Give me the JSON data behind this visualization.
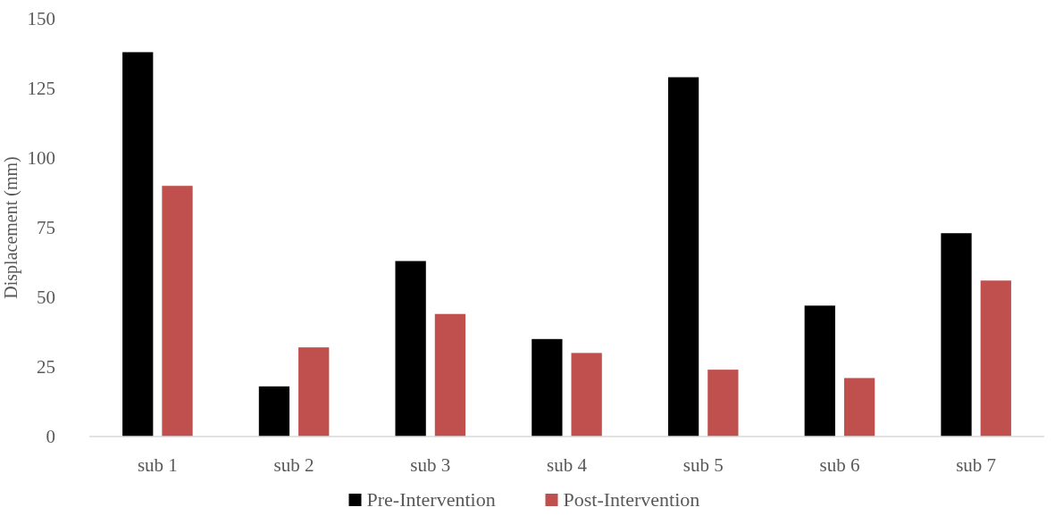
{
  "chart_data": {
    "type": "bar",
    "ylabel": "Displacement (mm)",
    "categories": [
      "sub 1",
      "sub 2",
      "sub 3",
      "sub 4",
      "sub 5",
      "sub 6",
      "sub 7"
    ],
    "series": [
      {
        "name": "Pre-Intervention",
        "color": "#000000",
        "values": [
          138,
          18,
          63,
          35,
          129,
          47,
          73
        ]
      },
      {
        "name": "Post-Intervention",
        "color": "#c0504d",
        "values": [
          90,
          32,
          44,
          30,
          24,
          21,
          56
        ]
      }
    ],
    "ylim": [
      0,
      150
    ],
    "yticks": [
      0,
      25,
      50,
      75,
      100,
      125,
      150
    ],
    "grid": false,
    "legend": "bottom"
  }
}
